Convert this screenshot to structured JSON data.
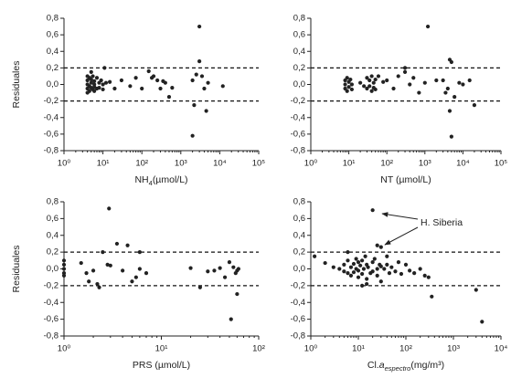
{
  "chart_data": [
    {
      "type": "scatter",
      "ylabel": "Residuales",
      "xlabel": [
        {
          "text": "NH"
        },
        {
          "text": "4",
          "sub": true
        },
        {
          "text": "(µmol/L)"
        }
      ],
      "log_x": true,
      "color": "#222222",
      "xlim": [
        1,
        100000
      ],
      "xticks": [
        {
          "value": 1,
          "label": "10⁰"
        },
        {
          "value": 10,
          "label": "10¹"
        },
        {
          "value": 100,
          "label": "10²"
        },
        {
          "value": 1000,
          "label": "10³"
        },
        {
          "value": 10000,
          "label": "10⁴"
        },
        {
          "value": 100000,
          "label": "10⁵"
        }
      ],
      "ylim": [
        -0.8,
        0.8
      ],
      "yticks": [
        {
          "value": 0.8,
          "label": "0,8"
        },
        {
          "value": 0.6,
          "label": "0,6"
        },
        {
          "value": 0.4,
          "label": "0,4"
        },
        {
          "value": 0.2,
          "label": "0,2"
        },
        {
          "value": 0,
          "label": "0,0"
        },
        {
          "value": -0.2,
          "label": "-0,2"
        },
        {
          "value": -0.4,
          "label": "-0,4"
        },
        {
          "value": -0.6,
          "label": "-0,6"
        },
        {
          "value": -0.8,
          "label": "-0,8"
        }
      ],
      "hlines": [
        0.2,
        -0.2
      ],
      "x": [
        4,
        4,
        4,
        4,
        4.5,
        4.5,
        4.5,
        5,
        5,
        5,
        5.5,
        5.5,
        6,
        6,
        6,
        7,
        7,
        8,
        8,
        9,
        10,
        10,
        11,
        12,
        4,
        5,
        6,
        15,
        20,
        30,
        50,
        70,
        100,
        150,
        200,
        250,
        300,
        400,
        500,
        600,
        2000,
        2200,
        2500,
        3000,
        3000,
        3500,
        4000,
        5000,
        2000,
        4500,
        12000,
        180,
        350
      ],
      "y": [
        0.1,
        0.05,
        0,
        -0.05,
        0.08,
        -0.02,
        -0.08,
        0.06,
        0.02,
        -0.04,
        0.1,
        -0.06,
        0.04,
        0,
        -0.03,
        0.08,
        -0.05,
        0.02,
        -0.04,
        0.05,
        0,
        -0.06,
        0.2,
        0.02,
        -0.1,
        0.15,
        -0.08,
        0.03,
        -0.05,
        0.05,
        -0.02,
        0.08,
        -0.05,
        0.16,
        0.1,
        0.05,
        -0.05,
        0.02,
        -0.15,
        -0.04,
        0.05,
        -0.25,
        0.12,
        0.7,
        0.28,
        0.1,
        -0.05,
        0.02,
        -0.62,
        -0.32,
        -0.02,
        0.08,
        0.04
      ]
    },
    {
      "type": "scatter",
      "xlabel": [
        {
          "text": "NT (µmol/L)"
        }
      ],
      "log_x": true,
      "color": "#222222",
      "xlim": [
        1,
        100000
      ],
      "xticks": [
        {
          "value": 1,
          "label": "10⁰"
        },
        {
          "value": 10,
          "label": "10¹"
        },
        {
          "value": 100,
          "label": "10²"
        },
        {
          "value": 1000,
          "label": "10³"
        },
        {
          "value": 10000,
          "label": "10⁴"
        },
        {
          "value": 100000,
          "label": "10⁵"
        }
      ],
      "ylim": [
        -0.8,
        0.8
      ],
      "yticks": [
        {
          "value": 0.8,
          "label": "0,8"
        },
        {
          "value": 0.6,
          "label": "0,6"
        },
        {
          "value": 0.4,
          "label": "0,4"
        },
        {
          "value": 0.2,
          "label": "0,2"
        },
        {
          "value": 0,
          "label": "0,0"
        },
        {
          "value": -0.2,
          "label": "-0,2"
        },
        {
          "value": -0.4,
          "label": "-0,4"
        },
        {
          "value": -0.6,
          "label": "-0,6"
        },
        {
          "value": -0.8,
          "label": "-0,8"
        }
      ],
      "hlines": [
        0.2,
        -0.2
      ],
      "x": [
        8,
        8,
        8,
        9,
        9,
        10,
        10,
        11,
        12,
        12,
        30,
        30,
        35,
        35,
        40,
        40,
        45,
        45,
        50,
        50,
        20,
        25,
        60,
        80,
        100,
        150,
        200,
        300,
        400,
        500,
        700,
        1000,
        1200,
        3000,
        3500,
        4000,
        4500,
        4500,
        5000,
        5000,
        6000,
        8000,
        10000,
        15000,
        20000,
        300,
        2000
      ],
      "y": [
        0.05,
        0,
        -0.05,
        0.08,
        -0.08,
        0.03,
        -0.03,
        0.06,
        0,
        -0.06,
        0.08,
        -0.05,
        0.05,
        -0.02,
        0.1,
        -0.08,
        0.02,
        -0.04,
        0.06,
        -0.06,
        0.02,
        -0.02,
        0.1,
        0.03,
        0.05,
        -0.05,
        0.1,
        0.15,
        0,
        0.08,
        -0.1,
        0.02,
        0.7,
        0.05,
        -0.1,
        -0.05,
        0.3,
        -0.32,
        0.27,
        -0.63,
        -0.15,
        0.02,
        0,
        0.05,
        -0.25,
        0.2,
        0.05
      ]
    },
    {
      "type": "scatter",
      "ylabel": "Residuales",
      "xlabel": [
        {
          "text": "PRS (µmol/L)"
        }
      ],
      "log_x": true,
      "color": "#222222",
      "xlim": [
        1,
        100
      ],
      "xticks": [
        {
          "value": 1,
          "label": "10⁰"
        },
        {
          "value": 10,
          "label": "10¹"
        },
        {
          "value": 100,
          "label": "10²"
        }
      ],
      "ylim": [
        -0.8,
        0.8
      ],
      "yticks": [
        {
          "value": 0.8,
          "label": "0,8"
        },
        {
          "value": 0.6,
          "label": "0,6"
        },
        {
          "value": 0.4,
          "label": "0,4"
        },
        {
          "value": 0.2,
          "label": "0,2"
        },
        {
          "value": 0,
          "label": "0,0"
        },
        {
          "value": -0.2,
          "label": "-0,2"
        },
        {
          "value": -0.4,
          "label": "-0,4"
        },
        {
          "value": -0.6,
          "label": "-0,6"
        },
        {
          "value": -0.8,
          "label": "-0,8"
        }
      ],
      "hlines": [
        0.2,
        -0.2
      ],
      "x": [
        1,
        1,
        1,
        1,
        1,
        1.5,
        1.7,
        1.8,
        2,
        2.2,
        2.3,
        2.5,
        2.8,
        2.9,
        3,
        3.5,
        4,
        4.5,
        5,
        5.5,
        6,
        6,
        7,
        20,
        25,
        30,
        35,
        40,
        50,
        52,
        55,
        58,
        60,
        62,
        60,
        45
      ],
      "y": [
        0.1,
        0.05,
        0,
        -0.05,
        -0.08,
        0.07,
        -0.05,
        -0.15,
        -0.02,
        -0.18,
        -0.22,
        0.2,
        0.05,
        0.72,
        0.04,
        0.3,
        -0.02,
        0.28,
        -0.15,
        -0.1,
        0,
        0.2,
        -0.05,
        0.01,
        -0.22,
        -0.03,
        -0.02,
        0.01,
        0.08,
        -0.6,
        0.02,
        -0.05,
        -0.3,
        0,
        -0.02,
        -0.1
      ]
    },
    {
      "type": "scatter",
      "xlabel": [
        {
          "text": "Cl."
        },
        {
          "text": "a",
          "italic": true
        },
        {
          "text": "espectro",
          "sub": true,
          "italic": true
        },
        {
          "text": "(mg/m³)"
        }
      ],
      "log_x": true,
      "color": "#222222",
      "xlim": [
        1,
        10000
      ],
      "xticks": [
        {
          "value": 1,
          "label": "10⁰"
        },
        {
          "value": 10,
          "label": "10¹"
        },
        {
          "value": 100,
          "label": "10²"
        },
        {
          "value": 1000,
          "label": "10³"
        },
        {
          "value": 10000,
          "label": "10⁴"
        }
      ],
      "ylim": [
        -0.8,
        0.8
      ],
      "yticks": [
        {
          "value": 0.8,
          "label": "0,8"
        },
        {
          "value": 0.6,
          "label": "0,6"
        },
        {
          "value": 0.4,
          "label": "0,4"
        },
        {
          "value": 0.2,
          "label": "0,2"
        },
        {
          "value": 0,
          "label": "0,0"
        },
        {
          "value": -0.2,
          "label": "-0,2"
        },
        {
          "value": -0.4,
          "label": "-0,4"
        },
        {
          "value": -0.6,
          "label": "-0,6"
        },
        {
          "value": -0.8,
          "label": "-0,8"
        }
      ],
      "hlines": [
        0.2,
        -0.2
      ],
      "annotation": "H. Siberia",
      "x": [
        1.2,
        2,
        3,
        4,
        5,
        5,
        6,
        6,
        7,
        7,
        8,
        8,
        9,
        9,
        10,
        10,
        10,
        11,
        12,
        12,
        13,
        14,
        15,
        15,
        16,
        18,
        20,
        20,
        22,
        25,
        25,
        28,
        30,
        30,
        35,
        40,
        45,
        50,
        60,
        70,
        80,
        100,
        120,
        150,
        200,
        250,
        300,
        350,
        20,
        25,
        30,
        3000,
        4000,
        6,
        12,
        15,
        40
      ],
      "y": [
        0.15,
        0.07,
        0.02,
        0,
        0.05,
        -0.03,
        0.1,
        -0.05,
        0.02,
        -0.08,
        0.06,
        -0.04,
        0.12,
        0,
        0.08,
        -0.02,
        -0.1,
        0.04,
        0.1,
        -0.06,
        0,
        0.15,
        0.05,
        -0.12,
        0.02,
        -0.05,
        0.08,
        -0.03,
        0.12,
        0,
        -0.08,
        0.05,
        0.03,
        -0.15,
        0,
        0.05,
        -0.05,
        0.02,
        -0.03,
        0.08,
        -0.06,
        0.05,
        -0.02,
        -0.05,
        0,
        -0.08,
        -0.1,
        -0.33,
        0.7,
        0.28,
        0.26,
        -0.25,
        -0.63,
        0.2,
        -0.2,
        -0.18,
        0.15
      ]
    }
  ]
}
